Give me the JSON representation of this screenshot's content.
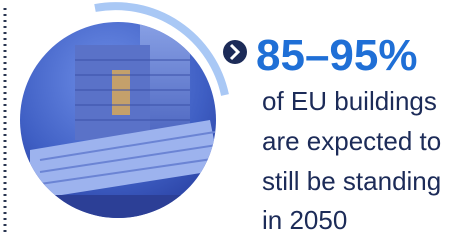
{
  "stat": "85–95%",
  "caption_lines": [
    "of EU buildings",
    "are expected to",
    "still be standing",
    "in 2050"
  ]
}
